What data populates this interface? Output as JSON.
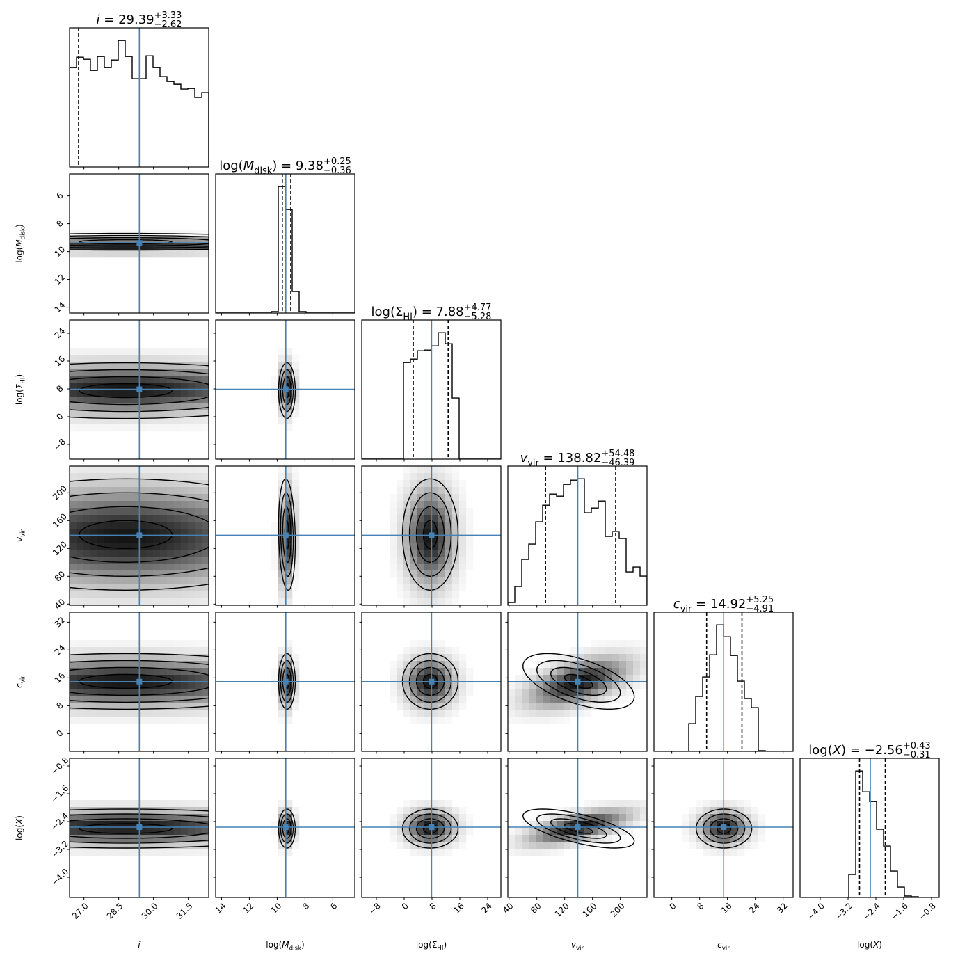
{
  "chart_data": {
    "type": "corner",
    "truth_color": "#4682b4",
    "shading_color": "#000000",
    "contour_sigma_levels": [
      0.5,
      1.0,
      1.5,
      2.0
    ],
    "parameters": [
      {
        "key": "i",
        "label": {
          "pre": "",
          "sym": "i",
          "sym_italic": true,
          "sub": "",
          "post": ""
        },
        "title": {
          "eq": " = ",
          "value": "29.39",
          "plus": "+3.33",
          "minus": "−2.62"
        },
        "xlim": [
          26.38,
          32.38
        ],
        "ticks": [
          27.0,
          28.5,
          30.0,
          31.5
        ],
        "tick_labels": [
          "27.0",
          "28.5",
          "30.0",
          "31.5"
        ],
        "truth": 29.39,
        "quantiles": [
          26.77,
          32.72
        ],
        "hist_counts": [
          143,
          158,
          155,
          139,
          159,
          143,
          154,
          182,
          159,
          127,
          127,
          160,
          143,
          130,
          123,
          119,
          112,
          113,
          100,
          107
        ],
        "model": {
          "mean": 28.8,
          "sd": 4.0
        }
      },
      {
        "key": "log_M_disk",
        "label": {
          "pre": "log(",
          "sym": "M",
          "sym_italic": true,
          "sub": "disk",
          "post": ")"
        },
        "title": {
          "eq": " = ",
          "value": "9.38",
          "plus": "+0.25",
          "minus": "−0.36"
        },
        "xlim": [
          14.42,
          4.42
        ],
        "ticks": [
          14,
          12,
          10,
          8,
          6
        ],
        "tick_labels": [
          "14",
          "12",
          "10",
          "8",
          "6"
        ],
        "truth": 9.38,
        "quantiles": [
          9.02,
          9.63
        ],
        "hist_counts": [
          0,
          0,
          0,
          0,
          0,
          0,
          0,
          0,
          2,
          182,
          149,
          31,
          2,
          0,
          0,
          0,
          0,
          0,
          0,
          0
        ],
        "model": {
          "mean": 9.3,
          "sd": 0.3
        }
      },
      {
        "key": "log_Sigma_HI",
        "label": {
          "pre": "log(",
          "sym": "Σ",
          "sym_italic": false,
          "sub": "HI",
          "post": ")"
        },
        "title": {
          "eq": " = ",
          "value": "7.88",
          "plus": "+4.77",
          "minus": "−5.28"
        },
        "xlim": [
          -12.2,
          27.8
        ],
        "ticks": [
          -8,
          0,
          8,
          16,
          24
        ],
        "tick_labels": [
          "−8",
          "0",
          "8",
          "16",
          "24"
        ],
        "truth": 7.88,
        "quantiles": [
          2.6,
          12.65
        ],
        "hist_counts": [
          0,
          0,
          0,
          0,
          0,
          0,
          139,
          144,
          156,
          157,
          163,
          182,
          166,
          88,
          0,
          0,
          0,
          0,
          0,
          0
        ],
        "model": {
          "mean": 7.5,
          "sd": 4.0
        }
      },
      {
        "key": "v_vir",
        "label": {
          "pre": "",
          "sym": "v",
          "sym_italic": true,
          "sub": "vir",
          "post": ""
        },
        "title": {
          "eq": " = ",
          "value": "138.82",
          "plus": "+54.48",
          "minus": "−46.39"
        },
        "xlim": [
          38.3,
          238.3
        ],
        "ticks": [
          40,
          80,
          120,
          160,
          200
        ],
        "tick_labels": [
          "40",
          "80",
          "120",
          "160",
          "200"
        ],
        "truth": 138.82,
        "quantiles": [
          92.43,
          193.3
        ],
        "hist_counts": [
          4,
          27,
          66,
          88,
          120,
          144,
          160,
          157,
          174,
          180,
          182,
          133,
          140,
          150,
          99,
          106,
          96,
          48,
          55,
          42
        ],
        "model": {
          "mean": 140,
          "sd": 40
        }
      },
      {
        "key": "c_vir",
        "label": {
          "pre": "",
          "sym": "c",
          "sym_italic": true,
          "sub": "vir",
          "post": ""
        },
        "title": {
          "eq": " = ",
          "value": "14.92",
          "plus": "+5.25",
          "minus": "−4.91"
        },
        "xlim": [
          -5.13,
          34.87
        ],
        "ticks": [
          0,
          8,
          16,
          24,
          32
        ],
        "tick_labels": [
          "0",
          "8",
          "16",
          "24",
          "32"
        ],
        "truth": 14.92,
        "quantiles": [
          10.01,
          20.17
        ],
        "hist_counts": [
          0,
          0,
          0,
          0,
          0,
          40,
          79,
          107,
          139,
          182,
          165,
          138,
          101,
          76,
          63,
          1,
          0,
          0,
          0,
          0
        ],
        "model": {
          "mean": 15,
          "sd": 4.0
        }
      },
      {
        "key": "log_X",
        "label": {
          "pre": "log(",
          "sym": "X",
          "sym_italic": true,
          "sub": "",
          "post": ")"
        },
        "title": {
          "eq": " = ",
          "value": "−2.56",
          "plus": "+0.43",
          "minus": "−0.31"
        },
        "xlim": [
          -4.58,
          -0.58
        ],
        "ticks": [
          -4.0,
          -3.2,
          -2.4,
          -1.6,
          -0.8
        ],
        "tick_labels": [
          "−4.0",
          "−3.2",
          "−2.4",
          "−1.6",
          "−0.8"
        ],
        "truth": -2.56,
        "quantiles": [
          -2.87,
          -2.13
        ],
        "hist_counts": [
          0,
          0,
          0,
          0,
          0,
          0,
          0,
          33,
          182,
          152,
          138,
          98,
          74,
          38,
          15,
          2,
          1,
          0,
          0,
          0
        ],
        "model": {
          "mean": -2.6,
          "sd": 0.28
        }
      }
    ],
    "correlations": {
      "3-4": -0.55,
      "3-5": -0.65,
      "1-3": 0.15
    }
  }
}
